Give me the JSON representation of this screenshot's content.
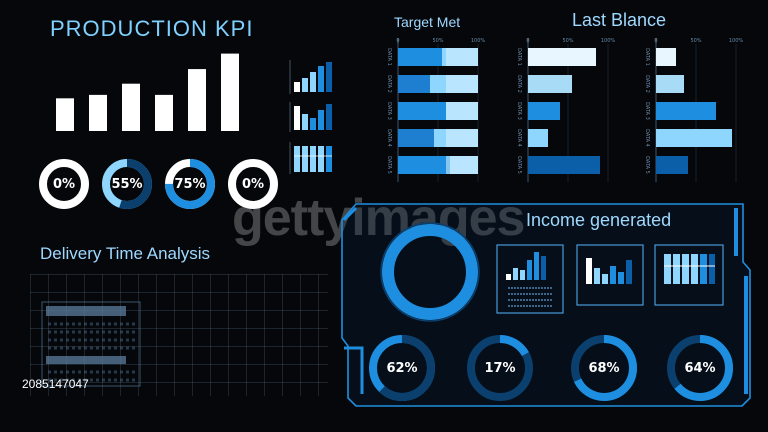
{
  "header": {
    "title": "PRODUCTION  KPI"
  },
  "kpi_bars": [
    0.38,
    0.42,
    0.55,
    0.42,
    0.72,
    0.9,
    0.9
  ],
  "kpi_rings": [
    {
      "label": "0%",
      "value": 0
    },
    {
      "label": "55%",
      "value": 55
    },
    {
      "label": "75%",
      "value": 75
    },
    {
      "label": "0%",
      "value": 0
    }
  ],
  "sections": {
    "target_met": "Target Met",
    "last_balance": "Last Blance",
    "income": "Income generated",
    "delivery": "Delivery Time Analysis"
  },
  "category_labels": [
    "DATA 1",
    "DATA 2",
    "DATA 3",
    "DATA 4",
    "DATA 5"
  ],
  "axis_ticks": [
    "0",
    "50%",
    "100%"
  ],
  "target_met_bars": [
    {
      "segments": [
        0.55,
        0.45
      ]
    },
    {
      "segments": [
        0.4,
        0.6
      ]
    },
    {
      "segments": [
        0.6,
        0.4
      ]
    },
    {
      "segments": [
        0.45,
        0.55
      ]
    },
    {
      "segments": [
        0.65,
        0.35
      ]
    }
  ],
  "last_balance_a": [
    0.85,
    0.55,
    0.4,
    0.25,
    0.9
  ],
  "last_balance_b": [
    0.25,
    0.35,
    0.75,
    0.95,
    0.4
  ],
  "income_rings": [
    {
      "label": "62%",
      "value": 62
    },
    {
      "label": "17%",
      "value": 17
    },
    {
      "label": "68%",
      "value": 68
    },
    {
      "label": "64%",
      "value": 64
    }
  ],
  "watermark": "gettyimages",
  "image_id": "2085147047",
  "colors": {
    "accent": "#1e8fe0",
    "light": "#8fd6ff",
    "dark": "#0b3f6e"
  }
}
